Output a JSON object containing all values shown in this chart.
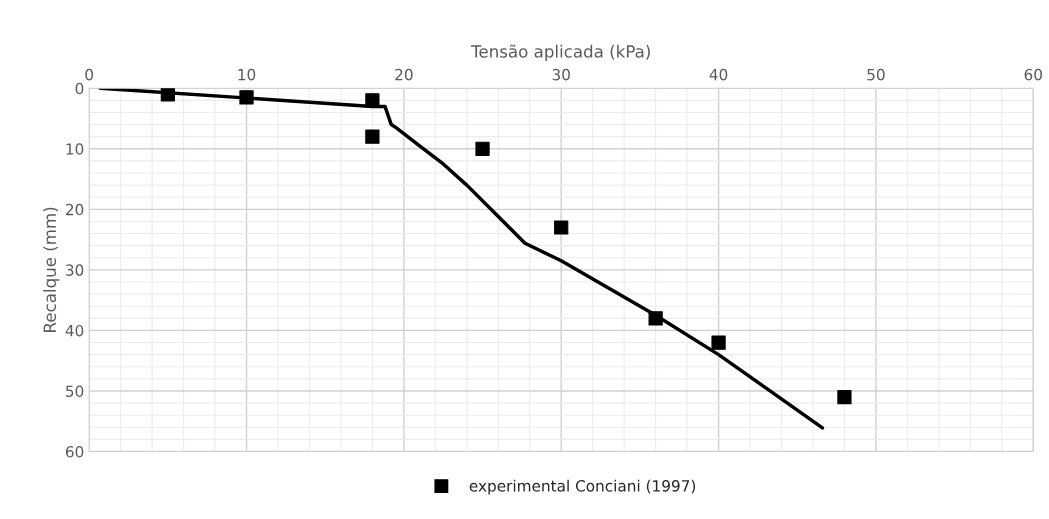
{
  "chart_data": {
    "type": "scatter",
    "xlabel": "Tensão aplicada (kPa)",
    "ylabel": "Recalque (mm)",
    "xlim": [
      0,
      60
    ],
    "xticks": [
      0,
      10,
      20,
      30,
      40,
      50,
      60
    ],
    "ylim": [
      60,
      0
    ],
    "yticks": [
      0,
      10,
      20,
      30,
      40,
      50,
      60
    ],
    "grid": true,
    "legend": "bottom",
    "series": [
      {
        "name": "experimental Conciani (1997)",
        "marker": "square",
        "color": "#000000",
        "x": [
          5,
          10,
          18,
          18,
          25,
          30,
          36,
          40,
          48
        ],
        "values": [
          1,
          1.5,
          2,
          8,
          10,
          23,
          38,
          42,
          51
        ]
      },
      {
        "type": "line",
        "color": "#000000",
        "x": [
          0.7,
          18,
          18.8,
          19.2,
          19.5,
          21,
          22.5,
          24,
          27.7,
          30,
          36,
          40,
          43,
          46.6
        ],
        "values": [
          0,
          3,
          3,
          6,
          6.5,
          9.5,
          12.5,
          16,
          25.6,
          28.5,
          37.5,
          44,
          49.5,
          56.1
        ]
      }
    ]
  }
}
